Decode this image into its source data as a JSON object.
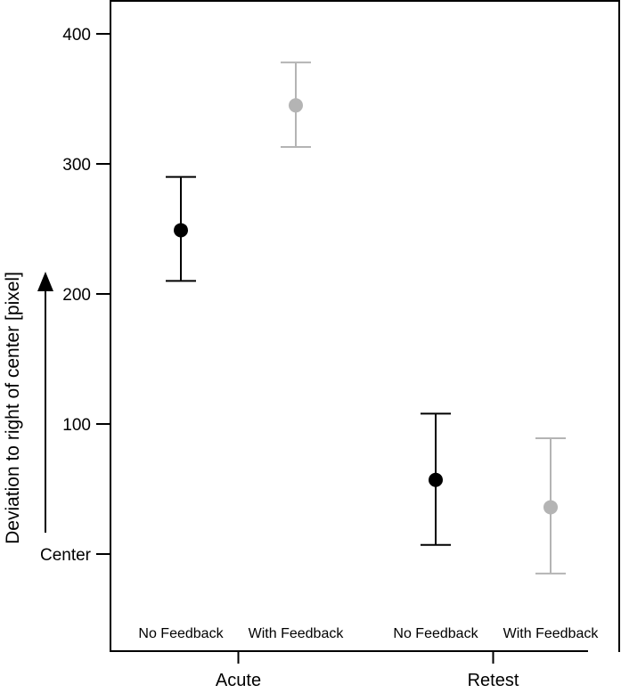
{
  "chart_data": {
    "type": "scatter",
    "title": "",
    "ylabel": "Deviation to right of center [pixel]",
    "ylim": [
      -75,
      425
    ],
    "y_ticks": [
      {
        "value": 0,
        "label": "Center"
      },
      {
        "value": 100,
        "label": "100"
      },
      {
        "value": 200,
        "label": "200"
      },
      {
        "value": 300,
        "label": "300"
      },
      {
        "value": 400,
        "label": "400"
      }
    ],
    "groups": [
      "Acute",
      "Retest"
    ],
    "conditions": [
      "No Feedback",
      "With Feedback",
      "No Feedback",
      "With Feedback"
    ],
    "points": [
      {
        "group": "Acute",
        "condition": "No Feedback",
        "y": 249,
        "lower": 210,
        "upper": 290,
        "color": "#000000"
      },
      {
        "group": "Acute",
        "condition": "With Feedback",
        "y": 345,
        "lower": 313,
        "upper": 378,
        "color": "#b4b4b4"
      },
      {
        "group": "Retest",
        "condition": "No Feedback",
        "y": 57,
        "lower": 7,
        "upper": 108,
        "color": "#000000"
      },
      {
        "group": "Retest",
        "condition": "With Feedback",
        "y": 36,
        "lower": -15,
        "upper": 89,
        "color": "#b4b4b4"
      }
    ],
    "arrow": true,
    "grid": false,
    "legend": "none"
  }
}
